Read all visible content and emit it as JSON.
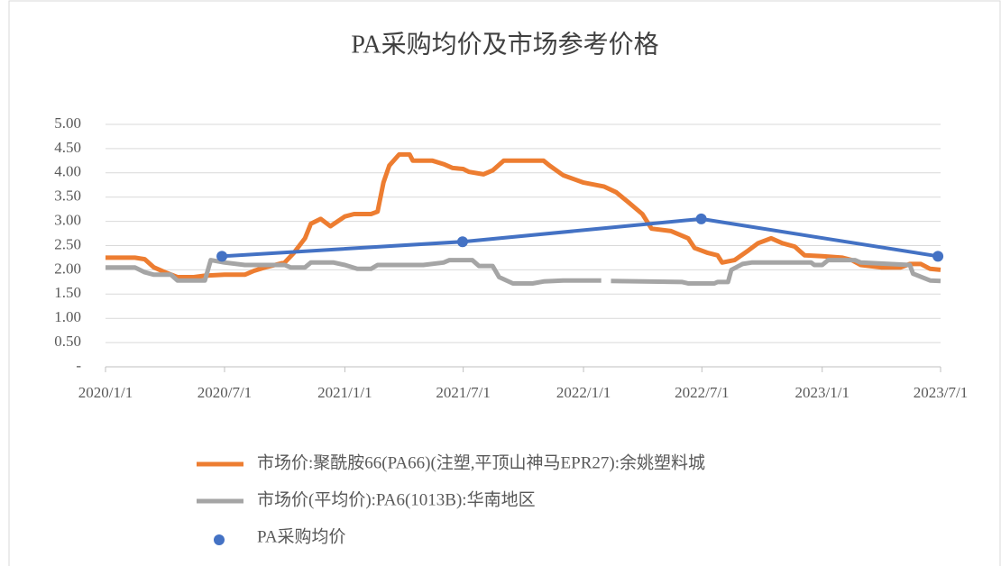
{
  "chart_data": {
    "type": "line",
    "title": "PA采购均价及市场参考价格",
    "xlim": [
      "2020/1/1",
      "2023/7/1"
    ],
    "xticks": [
      "2020/1/1",
      "2020/7/1",
      "2021/1/1",
      "2021/7/1",
      "2022/1/1",
      "2022/7/1",
      "2023/1/1",
      "2023/7/1"
    ],
    "ylim": [
      0,
      5
    ],
    "yticks": [
      {
        "value": 0,
        "label": "-"
      },
      {
        "value": 0.5,
        "label": "0.50"
      },
      {
        "value": 1,
        "label": "1.00"
      },
      {
        "value": 1.5,
        "label": "1.50"
      },
      {
        "value": 2,
        "label": "2.00"
      },
      {
        "value": 2.5,
        "label": "2.50"
      },
      {
        "value": 3,
        "label": "3.00"
      },
      {
        "value": 3.5,
        "label": "3.50"
      },
      {
        "value": 4,
        "label": "4.00"
      },
      {
        "value": 4.5,
        "label": "4.50"
      },
      {
        "value": 5,
        "label": "5.00"
      }
    ],
    "grid": true,
    "legend": "bottom",
    "series": [
      {
        "name": "市场价:聚酰胺66(PA66)(注塑,平顶山神马EPR27):余姚塑料城",
        "color": "#ed7d31",
        "x": [
          "2020/1/1",
          "2020/2/15",
          "2020/3/1",
          "2020/3/15",
          "2020/4/1",
          "2020/4/20",
          "2020/5/15",
          "2020/6/1",
          "2020/7/1",
          "2020/8/1",
          "2020/8/15",
          "2020/9/1",
          "2020/10/1",
          "2020/10/15",
          "2020/11/1",
          "2020/11/10",
          "2020/11/25",
          "2020/12/10",
          "2021/1/1",
          "2021/1/15",
          "2021/2/10",
          "2021/2/20",
          "2021/3/1",
          "2021/3/10",
          "2021/3/25",
          "2021/4/10",
          "2021/4/15",
          "2021/5/15",
          "2021/6/1",
          "2021/6/15",
          "2021/7/1",
          "2021/7/10",
          "2021/8/1",
          "2021/8/15",
          "2021/9/1",
          "2021/10/1",
          "2021/11/1",
          "2021/11/10",
          "2021/12/1",
          "2022/1/1",
          "2022/2/1",
          "2022/2/20",
          "2022/3/10",
          "2022/4/1",
          "2022/4/15",
          "2022/5/15",
          "2022/6/10",
          "2022/6/20",
          "2022/7/10",
          "2022/7/25",
          "2022/8/1",
          "2022/8/20",
          "2022/9/10",
          "2022/9/25",
          "2022/10/15",
          "2022/11/1",
          "2022/11/20",
          "2022/12/5",
          "2023/1/1",
          "2023/2/1",
          "2023/2/15",
          "2023/3/1",
          "2023/4/1",
          "2023/5/1",
          "2023/5/15",
          "2023/6/1",
          "2023/6/15",
          "2023/7/1"
        ],
        "values": [
          2.25,
          2.25,
          2.22,
          2.05,
          1.95,
          1.85,
          1.85,
          1.88,
          1.9,
          1.9,
          1.98,
          2.05,
          2.15,
          2.35,
          2.65,
          2.95,
          3.05,
          2.9,
          3.1,
          3.15,
          3.15,
          3.2,
          3.8,
          4.15,
          4.38,
          4.38,
          4.25,
          4.25,
          4.18,
          4.1,
          4.08,
          4.02,
          3.97,
          4.05,
          4.25,
          4.25,
          4.25,
          4.15,
          3.95,
          3.8,
          3.72,
          3.6,
          3.4,
          3.15,
          2.85,
          2.8,
          2.65,
          2.45,
          2.35,
          2.3,
          2.15,
          2.2,
          2.4,
          2.55,
          2.65,
          2.55,
          2.48,
          2.3,
          2.28,
          2.25,
          2.2,
          2.1,
          2.05,
          2.05,
          2.12,
          2.12,
          2.02,
          2.0
        ]
      },
      {
        "name": "市场价(平均价):PA6(1013B):华南地区",
        "color": "#a5a5a5",
        "x": [
          "2020/1/1",
          "2020/2/15",
          "2020/3/1",
          "2020/3/15",
          "2020/4/10",
          "2020/4/20",
          "2020/6/1",
          "2020/6/10",
          "2020/7/1",
          "2020/8/1",
          "2020/10/1",
          "2020/10/10",
          "2020/11/1",
          "2020/11/10",
          "2020/12/15",
          "2021/1/1",
          "2021/1/20",
          "2021/2/10",
          "2021/2/20",
          "2021/5/1",
          "2021/6/1",
          "2021/6/10",
          "2021/7/15",
          "2021/7/25",
          "2021/8/15",
          "2021/8/25",
          "2021/9/15",
          "2021/10/15",
          "2021/11/1",
          "2021/12/1",
          "2022/1/28",
          "2022/2/5",
          "2022/2/12",
          "2022/6/1",
          "2022/6/10",
          "2022/7/20",
          "2022/7/25",
          "2022/8/10",
          "2022/8/15",
          "2022/9/1",
          "2022/9/15",
          "2022/12/15",
          "2022/12/20",
          "2023/1/1",
          "2023/1/10",
          "2023/2/20",
          "2023/3/1",
          "2023/5/15",
          "2023/5/20",
          "2023/6/15",
          "2023/7/1"
        ],
        "values": [
          2.05,
          2.05,
          1.95,
          1.9,
          1.9,
          1.78,
          1.78,
          2.2,
          2.15,
          2.1,
          2.1,
          2.05,
          2.05,
          2.15,
          2.15,
          2.1,
          2.02,
          2.02,
          2.1,
          2.1,
          2.15,
          2.2,
          2.2,
          2.08,
          2.08,
          1.85,
          1.72,
          1.72,
          1.76,
          1.78,
          1.78,
          null,
          1.77,
          1.75,
          1.72,
          1.72,
          1.75,
          1.75,
          2.0,
          2.12,
          2.15,
          2.15,
          2.1,
          2.1,
          2.2,
          2.2,
          2.15,
          2.1,
          1.92,
          1.78,
          1.77
        ]
      },
      {
        "name": "PA采购均价",
        "color": "#4472c4",
        "marker": "circle",
        "x": [
          "2020/6/27",
          "2021/6/30",
          "2022/6/30",
          "2023/6/27"
        ],
        "values": [
          2.28,
          2.58,
          3.05,
          2.28
        ]
      }
    ]
  }
}
